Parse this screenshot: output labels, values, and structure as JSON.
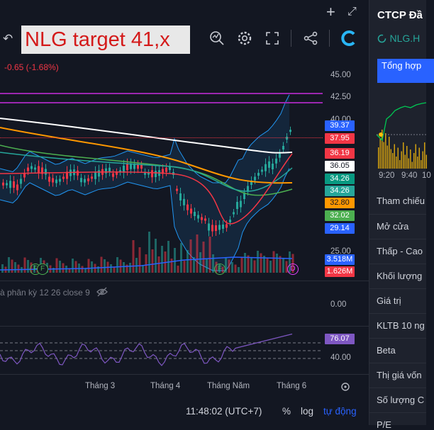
{
  "header": {
    "note": "NLG target 41,x",
    "change": "-0.65 (-1.68%)"
  },
  "colors": {
    "up": "#26a69a",
    "down": "#f23645",
    "purple_line": "#9c27b0",
    "ma_white": "#ffffff",
    "ma_orange": "#ff9800",
    "ma_green": "#4caf50",
    "ma_teal": "#26a69a",
    "ma_red": "#f23645",
    "bollinger": "#2196f3",
    "rsi": "#7e57c2"
  },
  "icons": [
    "back-arrow-icon",
    "indicator-icon",
    "settings-gear-icon",
    "fullscreen-icon",
    "share-icon",
    "logo-c-icon",
    "plus-icon",
    "expand-icon",
    "eye-off-icon",
    "calendar-icon"
  ],
  "price_axis": {
    "ticks": [
      "45.00",
      "42.50"
    ],
    "extra_ticks_top": "40.00",
    "extra_ticks_bottom": "25.00"
  },
  "price_tags": [
    {
      "value": "39.37",
      "color": "#2962ff"
    },
    {
      "value": "37.95",
      "color": "#f23645"
    },
    {
      "value": "36.19",
      "color": "#f23645"
    },
    {
      "value": "36.05",
      "color": "#ffffff"
    },
    {
      "value": "34.26",
      "color": "#089981"
    },
    {
      "value": "34.26",
      "color": "#26a69a"
    },
    {
      "value": "32.80",
      "color": "#ff9800"
    },
    {
      "value": "32.02",
      "color": "#4caf50"
    },
    {
      "value": "29.14",
      "color": "#2962ff"
    },
    {
      "value": "3.518M",
      "color": "#2962ff"
    },
    {
      "value": "1.626M",
      "color": "#f23645"
    }
  ],
  "macd": {
    "label": "à phân kỳ 12 26 close 9",
    "zero": "0.00"
  },
  "rsi": {
    "value": "76.07",
    "level": "40.00"
  },
  "x_axis": [
    "Tháng 3",
    "Tháng 4",
    "Tháng Năm",
    "Tháng 6"
  ],
  "bottom": {
    "time": "11:48:02 (UTC+7)",
    "percent": "%",
    "log": "log",
    "auto": "tự động"
  },
  "events": [
    "F",
    "F",
    "F",
    "D"
  ],
  "side": {
    "title": "CTCP Đầ",
    "symbol": "NLG.H",
    "tab": "Tổng hợp",
    "rows": [
      "Tham chiếu",
      "Mở cửa",
      "Thấp - Cao",
      "Khối lượng",
      "Giá trị",
      "KLTB 10 ng",
      "Beta",
      "Thị giá vốn",
      "Số lượng C",
      "P/E"
    ],
    "times": [
      "9:20",
      "9:40",
      "10"
    ]
  }
}
